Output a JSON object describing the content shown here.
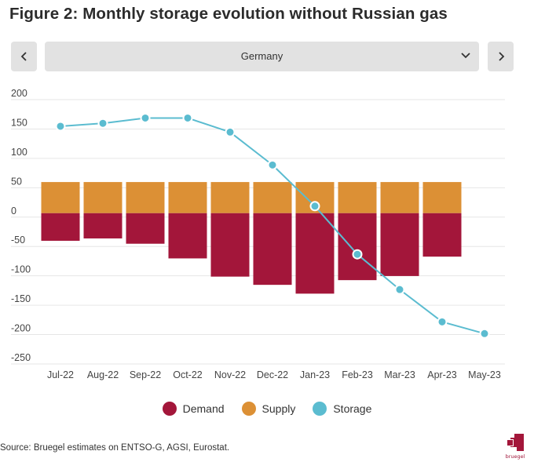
{
  "title": "Figure 2: Monthly storage evolution without Russian gas",
  "controls": {
    "selected_country": "Germany",
    "prev_icon": "chevron-left-icon",
    "next_icon": "chevron-right-icon",
    "dropdown_icon": "chevron-down-icon"
  },
  "colors": {
    "demand": "#a3163a",
    "supply": "#dc9035",
    "storage": "#5bbcd0",
    "grid": "#e6e6e6",
    "axis_text": "#444444"
  },
  "chart_data": {
    "type": "bar",
    "categories": [
      "Jul-22",
      "Aug-22",
      "Sep-22",
      "Oct-22",
      "Nov-22",
      "Dec-22",
      "Jan-23",
      "Feb-23",
      "Mar-23",
      "Apr-23",
      "May-23"
    ],
    "series": [
      {
        "name": "Demand",
        "type": "bar",
        "values": [
          -47,
          -43,
          -52,
          -77,
          -108,
          -122,
          -137,
          -114,
          -107,
          -74,
          null
        ]
      },
      {
        "name": "Supply",
        "type": "bar",
        "values": [
          53,
          53,
          53,
          53,
          53,
          53,
          53,
          53,
          53,
          53,
          null
        ]
      },
      {
        "name": "Storage",
        "type": "line",
        "values": [
          148,
          153,
          162,
          162,
          138,
          82,
          12,
          -70,
          -130,
          -185,
          -205
        ]
      }
    ],
    "yticks": [
      200,
      150,
      100,
      50,
      0,
      -50,
      -100,
      -150,
      -200,
      -250
    ],
    "ylim": [
      -250,
      200
    ],
    "grid": true,
    "legend": "bottom",
    "xlabel": "",
    "ylabel": ""
  },
  "legend": [
    {
      "label": "Demand",
      "key": "demand"
    },
    {
      "label": "Supply",
      "key": "supply"
    },
    {
      "label": "Storage",
      "key": "storage"
    }
  ],
  "source": "Source: Bruegel estimates on ENTSO-G, AGSI, Eurostat.",
  "logo_text": "bruegel"
}
